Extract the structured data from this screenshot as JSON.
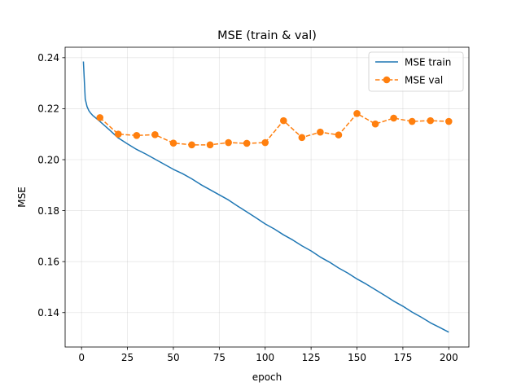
{
  "chart_data": {
    "type": "line",
    "title": "MSE (train & val)",
    "xlabel": "epoch",
    "ylabel": "MSE",
    "xlim": [
      -8.95,
      210.95
    ],
    "ylim": [
      0.1265,
      0.2441
    ],
    "xticks": [
      0,
      25,
      50,
      75,
      100,
      125,
      150,
      175,
      200
    ],
    "yticks": [
      0.14,
      0.16,
      0.18,
      0.2,
      0.22,
      0.24
    ],
    "ytick_labels": [
      "0.14",
      "0.16",
      "0.18",
      "0.20",
      "0.22",
      "0.24"
    ],
    "grid": true,
    "legend_position": "top-right",
    "series": [
      {
        "name": "MSE train",
        "color": "#1f77b4",
        "style": "solid",
        "marker": "none",
        "x": [
          1,
          2,
          3,
          4,
          5,
          6,
          8,
          10,
          15,
          20,
          25,
          30,
          35,
          40,
          45,
          50,
          55,
          60,
          65,
          70,
          75,
          80,
          85,
          90,
          95,
          100,
          105,
          110,
          115,
          120,
          125,
          130,
          135,
          140,
          145,
          150,
          155,
          160,
          165,
          170,
          175,
          180,
          185,
          190,
          195,
          200
        ],
        "y": [
          0.2385,
          0.2238,
          0.2208,
          0.2192,
          0.2182,
          0.2174,
          0.2162,
          0.215,
          0.2118,
          0.2085,
          0.2062,
          0.204,
          0.2022,
          0.2002,
          0.1982,
          0.1962,
          0.1945,
          0.1925,
          0.1902,
          0.1882,
          0.1862,
          0.1842,
          0.1818,
          0.1795,
          0.1772,
          0.1748,
          0.1728,
          0.1705,
          0.1685,
          0.1662,
          0.1642,
          0.1618,
          0.1598,
          0.1575,
          0.1555,
          0.1532,
          0.1512,
          0.149,
          0.1468,
          0.1445,
          0.1425,
          0.1402,
          0.1382,
          0.136,
          0.1342,
          0.1323
        ]
      },
      {
        "name": "MSE val",
        "color": "#ff7f0e",
        "style": "dashed",
        "marker": "circle",
        "x": [
          10,
          20,
          30,
          40,
          50,
          60,
          70,
          80,
          90,
          100,
          110,
          120,
          130,
          140,
          150,
          160,
          170,
          180,
          190,
          200
        ],
        "y": [
          0.2165,
          0.21,
          0.2095,
          0.2098,
          0.2065,
          0.2058,
          0.2058,
          0.2067,
          0.2064,
          0.2067,
          0.2153,
          0.2087,
          0.2108,
          0.2097,
          0.2181,
          0.214,
          0.2163,
          0.215,
          0.2153,
          0.215
        ]
      }
    ]
  }
}
